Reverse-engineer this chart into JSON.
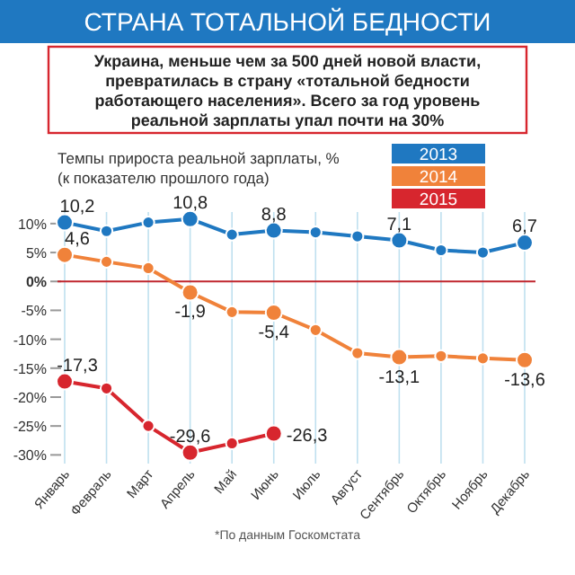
{
  "chart_data": {
    "type": "line",
    "title": "СТРАНА ТОТАЛЬНОЙ БЕДНОСТИ",
    "subtitle": "Украина, меньше чем за 500 дней новой власти, превратилась в страну «тотальной бедности работающего населения». Всего за год уровень реальной зарплаты упал почти на 30%",
    "ylabel": "Темпы прироста реальной зарплаты, % (к показателю прошлого года)",
    "annotations": [
      "*По данным Госкомстата"
    ],
    "categories": [
      "Январь",
      "Февраль",
      "Март",
      "Апрель",
      "Май",
      "Июнь",
      "Июль",
      "Август",
      "Сентябрь",
      "Октябрь",
      "Ноябрь",
      "Декабрь"
    ],
    "series": [
      {
        "name": "2013",
        "color": "#1f78c1",
        "values": [
          10.2,
          8.7,
          10.2,
          10.8,
          8.1,
          8.8,
          8.5,
          7.8,
          7.1,
          5.4,
          5.0,
          6.7
        ],
        "value_labels": [
          "10,2",
          null,
          null,
          "10,8",
          null,
          "8,8",
          null,
          null,
          "7,1",
          null,
          null,
          "6,7"
        ]
      },
      {
        "name": "2014",
        "color": "#f0823a",
        "values": [
          4.6,
          3.4,
          2.3,
          -1.9,
          -5.3,
          -5.4,
          -8.4,
          -12.4,
          -13.1,
          -12.9,
          -13.3,
          -13.6
        ],
        "value_labels": [
          "4,6",
          null,
          null,
          "-1,9",
          null,
          "-5,4",
          null,
          null,
          "-13,1",
          null,
          null,
          "-13,6"
        ]
      },
      {
        "name": "2015",
        "color": "#d7262e",
        "values": [
          -17.3,
          -18.5,
          -25.0,
          -29.6,
          -28.0,
          -26.3,
          null,
          null,
          null,
          null,
          null,
          null
        ],
        "value_labels": [
          "-17,3",
          null,
          null,
          "-29,6",
          null,
          "-26,3",
          null,
          null,
          null,
          null,
          null,
          null
        ]
      }
    ],
    "ylim": [
      -31.5,
      12
    ],
    "yticks": [
      {
        "value": 10,
        "label": "10%"
      },
      {
        "value": 5,
        "label": "5%"
      },
      {
        "value": 0,
        "label": "0%"
      },
      {
        "value": -5,
        "label": "-5%"
      },
      {
        "value": -10,
        "label": "-10%"
      },
      {
        "value": -15,
        "label": "-15%"
      },
      {
        "value": -20,
        "label": "-20%"
      },
      {
        "value": -25,
        "label": "-25%"
      },
      {
        "value": -30,
        "label": "-30%"
      }
    ],
    "ref_lines": [
      {
        "axis": "y",
        "value": 0,
        "color": "#c0262e"
      }
    ],
    "grid": "x",
    "legend": "top right",
    "marker": "circle",
    "line_style": "solid"
  }
}
